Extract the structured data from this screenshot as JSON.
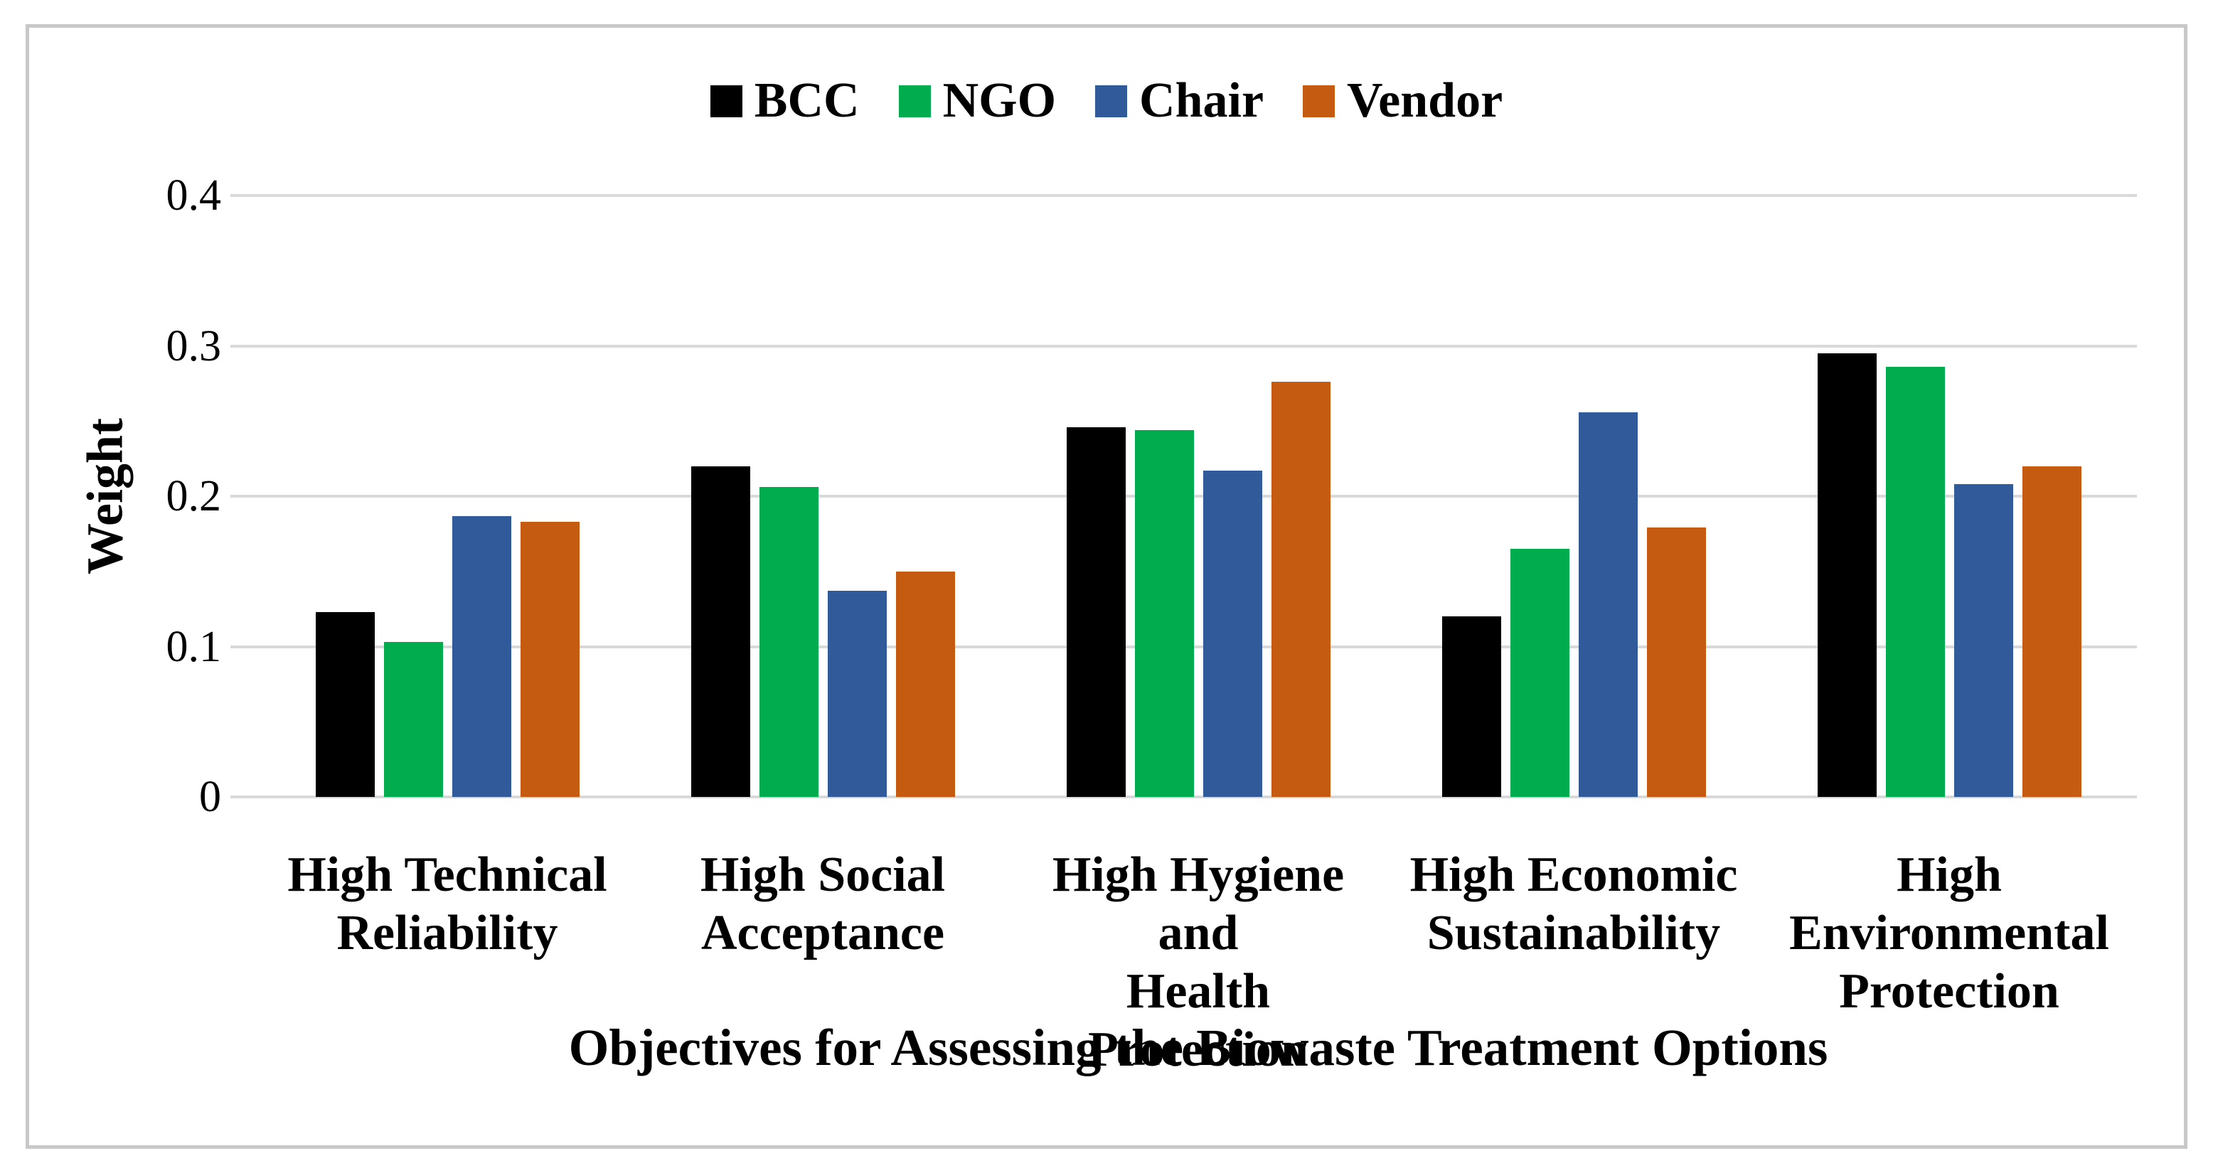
{
  "chart_data": {
    "type": "bar",
    "title": "",
    "xlabel": "Objectives for Assessing the Biowaste Treatment Options",
    "ylabel": "Weight",
    "ylim": [
      0,
      0.4
    ],
    "yticks": [
      "0",
      "0.1",
      "0.2",
      "0.3",
      "0.4"
    ],
    "grid": true,
    "legend_position": "top-center",
    "categories": [
      "High Technical Reliability",
      "High Social Acceptance",
      "High Hygiene and Health Protection",
      "High Economic Sustainability",
      "High Environmental Protection"
    ],
    "categories_display": [
      "High Technical\nReliability",
      "High Social\nAcceptance",
      "High Hygiene and\nHealth Protection",
      "High Economic\nSustainability",
      "High\nEnvironmental\nProtection"
    ],
    "series": [
      {
        "name": "BCC",
        "color": "#000000",
        "values": [
          0.123,
          0.22,
          0.246,
          0.12,
          0.295
        ]
      },
      {
        "name": "NGO",
        "color": "#00AC4E",
        "values": [
          0.103,
          0.206,
          0.244,
          0.165,
          0.286
        ]
      },
      {
        "name": "Chair",
        "color": "#315A9B",
        "values": [
          0.187,
          0.137,
          0.217,
          0.256,
          0.208
        ]
      },
      {
        "name": "Vendor",
        "color": "#C55A11",
        "values": [
          0.183,
          0.15,
          0.276,
          0.179,
          0.22
        ]
      }
    ]
  },
  "colors": {
    "gridline": "#D9D9D9",
    "frame_border": "#C8C8C8",
    "text": "#000000",
    "background": "#FFFFFF"
  }
}
